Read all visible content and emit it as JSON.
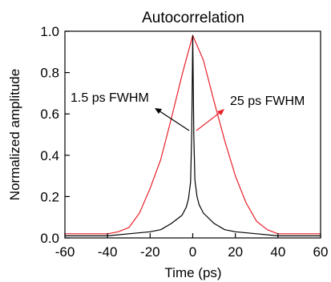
{
  "chart_data": {
    "type": "line",
    "title": "Autocorrelation",
    "xlabel": "Time (ps)",
    "ylabel": "Normalized amplitude",
    "xlim": [
      -60,
      60
    ],
    "ylim": [
      0.0,
      1.0
    ],
    "xticks": [
      "-60",
      "-40",
      "-20",
      "0",
      "20",
      "40",
      "60"
    ],
    "yticks": [
      "0.0",
      "0.2",
      "0.4",
      "0.6",
      "0.8",
      "1.0"
    ],
    "grid": false,
    "series": [
      {
        "color": "#e8212a",
        "x": [
          -60,
          -50,
          -40,
          -35,
          -30,
          -25,
          -20,
          -15,
          -10,
          -5,
          0,
          5,
          10,
          15,
          20,
          25,
          30,
          35,
          40,
          50,
          60
        ],
        "y": [
          0.02,
          0.02,
          0.02,
          0.03,
          0.05,
          0.12,
          0.24,
          0.38,
          0.58,
          0.79,
          0.98,
          0.86,
          0.66,
          0.47,
          0.3,
          0.17,
          0.08,
          0.04,
          0.02,
          0.02,
          0.02
        ]
      },
      {
        "color": "#000000",
        "x": [
          -60,
          -40,
          -30,
          -20,
          -15,
          -10,
          -5,
          -3,
          -2,
          -1,
          -0.5,
          0,
          0.5,
          1,
          2,
          3,
          5,
          10,
          15,
          20,
          30,
          40,
          60
        ],
        "y": [
          0.01,
          0.01,
          0.02,
          0.03,
          0.04,
          0.07,
          0.11,
          0.15,
          0.19,
          0.27,
          0.5,
          0.98,
          0.5,
          0.28,
          0.2,
          0.16,
          0.12,
          0.07,
          0.04,
          0.03,
          0.02,
          0.01,
          0.01
        ]
      }
    ],
    "annotations": [
      {
        "text": "1.5 ps FWHM",
        "color": "#000000"
      },
      {
        "text": "25 ps FWHM",
        "color": "#e8212a"
      }
    ]
  }
}
